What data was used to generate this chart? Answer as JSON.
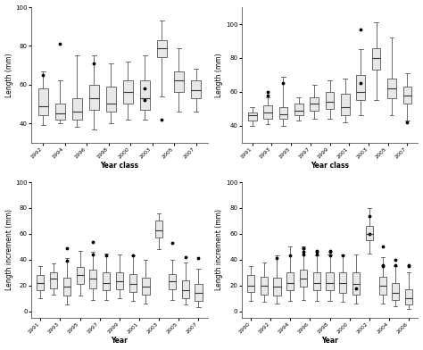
{
  "top_left": {
    "xlabel": "Year class",
    "ylabel": "Length (mm)",
    "ylim": [
      30,
      100
    ],
    "yticks": [
      40,
      60,
      80,
      100
    ],
    "categories": [
      "1992",
      "1994",
      "1996",
      "1998",
      "2000",
      "2003",
      "2005",
      "2007"
    ],
    "boxes": [
      {
        "med": 49,
        "q1": 44,
        "q3": 58,
        "whislo": 39,
        "whishi": 67,
        "fliers": [
          65
        ]
      },
      {
        "med": 45,
        "q1": 42,
        "q3": 50,
        "whislo": 40,
        "whishi": 62,
        "fliers": [
          81
        ]
      },
      {
        "med": 46,
        "q1": 42,
        "q3": 53,
        "whislo": 38,
        "whishi": 75,
        "fliers": []
      },
      {
        "med": 53,
        "q1": 47,
        "q3": 60,
        "whislo": 37,
        "whishi": 75,
        "fliers": [
          71
        ]
      },
      {
        "med": 50,
        "q1": 46,
        "q3": 59,
        "whislo": 40,
        "whishi": 71,
        "fliers": []
      },
      {
        "med": 56,
        "q1": 50,
        "q3": 62,
        "whislo": 42,
        "whishi": 72,
        "fliers": []
      },
      {
        "med": 53,
        "q1": 47,
        "q3": 62,
        "whislo": 42,
        "whishi": 75,
        "fliers": [
          58,
          52
        ]
      },
      {
        "med": 79,
        "q1": 74,
        "q3": 83,
        "whislo": 54,
        "whishi": 93,
        "fliers": [
          42
        ]
      },
      {
        "med": 62,
        "q1": 56,
        "q3": 67,
        "whislo": 46,
        "whishi": 79,
        "fliers": []
      },
      {
        "med": 57,
        "q1": 53,
        "q3": 62,
        "whislo": 46,
        "whishi": 68,
        "fliers": []
      }
    ]
  },
  "top_right": {
    "xlabel": "Year class",
    "ylabel": "Length (mm)",
    "ylim": [
      30,
      110
    ],
    "yticks": [
      40,
      60,
      80,
      100
    ],
    "categories": [
      "1991",
      "1993",
      "1995",
      "1997",
      "1999",
      "2001",
      "2003",
      "2005",
      "2007"
    ],
    "boxes": [
      {
        "med": 46,
        "q1": 43,
        "q3": 48,
        "whislo": 40,
        "whishi": 51,
        "fliers": []
      },
      {
        "med": 48,
        "q1": 44,
        "q3": 52,
        "whislo": 41,
        "whishi": 57,
        "fliers": [
          60,
          58
        ]
      },
      {
        "med": 47,
        "q1": 44,
        "q3": 51,
        "whislo": 40,
        "whishi": 69,
        "fliers": [
          65
        ]
      },
      {
        "med": 49,
        "q1": 46,
        "q3": 53,
        "whislo": 43,
        "whishi": 57,
        "fliers": []
      },
      {
        "med": 53,
        "q1": 49,
        "q3": 57,
        "whislo": 44,
        "whishi": 64,
        "fliers": []
      },
      {
        "med": 54,
        "q1": 50,
        "q3": 60,
        "whislo": 44,
        "whishi": 67,
        "fliers": []
      },
      {
        "med": 51,
        "q1": 46,
        "q3": 59,
        "whislo": 42,
        "whishi": 68,
        "fliers": []
      },
      {
        "med": 60,
        "q1": 55,
        "q3": 70,
        "whislo": 46,
        "whishi": 85,
        "fliers": [
          97,
          65
        ]
      },
      {
        "med": 80,
        "q1": 73,
        "q3": 86,
        "whislo": 55,
        "whishi": 101,
        "fliers": []
      },
      {
        "med": 62,
        "q1": 56,
        "q3": 68,
        "whislo": 46,
        "whishi": 92,
        "fliers": []
      },
      {
        "med": 58,
        "q1": 53,
        "q3": 63,
        "whislo": 43,
        "whishi": 71,
        "fliers": [
          42
        ]
      }
    ]
  },
  "bottom_left": {
    "xlabel": "Year",
    "ylabel": "Length increment (mm)",
    "ylim": [
      -5,
      100
    ],
    "yticks": [
      0,
      20,
      40,
      60,
      80,
      100
    ],
    "categories": [
      "1991",
      "1993",
      "1995",
      "1997",
      "1999",
      "2001",
      "2003",
      "2005",
      "2007"
    ],
    "boxes": [
      {
        "med": 22,
        "q1": 16,
        "q3": 28,
        "whislo": 10,
        "whishi": 35,
        "fliers": []
      },
      {
        "med": 25,
        "q1": 18,
        "q3": 30,
        "whislo": 13,
        "whishi": 37,
        "fliers": []
      },
      {
        "med": 19,
        "q1": 12,
        "q3": 26,
        "whislo": 5,
        "whishi": 41,
        "fliers": [
          39,
          49
        ]
      },
      {
        "med": 28,
        "q1": 21,
        "q3": 34,
        "whislo": 12,
        "whishi": 47,
        "fliers": []
      },
      {
        "med": 25,
        "q1": 18,
        "q3": 32,
        "whislo": 9,
        "whishi": 46,
        "fliers": [
          44,
          54
        ]
      },
      {
        "med": 22,
        "q1": 16,
        "q3": 30,
        "whislo": 9,
        "whishi": 45,
        "fliers": [
          43
        ]
      },
      {
        "med": 23,
        "q1": 17,
        "q3": 30,
        "whislo": 10,
        "whishi": 44,
        "fliers": []
      },
      {
        "med": 21,
        "q1": 15,
        "q3": 29,
        "whislo": 8,
        "whishi": 43,
        "fliers": [
          43
        ]
      },
      {
        "med": 19,
        "q1": 13,
        "q3": 26,
        "whislo": 6,
        "whishi": 40,
        "fliers": []
      },
      {
        "med": 63,
        "q1": 57,
        "q3": 70,
        "whislo": 48,
        "whishi": 76,
        "fliers": []
      },
      {
        "med": 23,
        "q1": 17,
        "q3": 29,
        "whislo": 9,
        "whishi": 40,
        "fliers": [
          53
        ]
      },
      {
        "med": 16,
        "q1": 10,
        "q3": 24,
        "whislo": 5,
        "whishi": 38,
        "fliers": [
          42
        ]
      },
      {
        "med": 14,
        "q1": 8,
        "q3": 21,
        "whislo": 3,
        "whishi": 33,
        "fliers": [
          41
        ]
      }
    ]
  },
  "bottom_right": {
    "xlabel": "Year",
    "ylabel": "Length increment (mm)",
    "ylim": [
      -5,
      100
    ],
    "yticks": [
      0,
      20,
      40,
      60,
      80,
      100
    ],
    "categories": [
      "1990",
      "1992",
      "1994",
      "1996",
      "1998",
      "2000",
      "2002",
      "2004",
      "2006"
    ],
    "boxes": [
      {
        "med": 20,
        "q1": 15,
        "q3": 28,
        "whislo": 8,
        "whishi": 35,
        "fliers": []
      },
      {
        "med": 20,
        "q1": 13,
        "q3": 27,
        "whislo": 7,
        "whishi": 38,
        "fliers": []
      },
      {
        "med": 19,
        "q1": 12,
        "q3": 26,
        "whislo": 6,
        "whishi": 43,
        "fliers": [
          41
        ]
      },
      {
        "med": 22,
        "q1": 16,
        "q3": 30,
        "whislo": 8,
        "whishi": 50,
        "fliers": [
          43
        ]
      },
      {
        "med": 25,
        "q1": 19,
        "q3": 32,
        "whislo": 9,
        "whishi": 50,
        "fliers": [
          49,
          49,
          46,
          44
        ]
      },
      {
        "med": 22,
        "q1": 16,
        "q3": 30,
        "whislo": 8,
        "whishi": 43,
        "fliers": [
          47,
          46,
          44
        ]
      },
      {
        "med": 22,
        "q1": 16,
        "q3": 30,
        "whislo": 8,
        "whishi": 44,
        "fliers": [
          47,
          46,
          43
        ]
      },
      {
        "med": 22,
        "q1": 14,
        "q3": 30,
        "whislo": 7,
        "whishi": 44,
        "fliers": [
          43
        ]
      },
      {
        "med": 21,
        "q1": 13,
        "q3": 30,
        "whislo": 6,
        "whishi": 44,
        "fliers": [
          18
        ]
      },
      {
        "med": 60,
        "q1": 55,
        "q3": 66,
        "whislo": 45,
        "whishi": 80,
        "fliers": [
          74,
          60
        ]
      },
      {
        "med": 20,
        "q1": 13,
        "q3": 27,
        "whislo": 6,
        "whishi": 42,
        "fliers": [
          50,
          36,
          35
        ]
      },
      {
        "med": 14,
        "q1": 9,
        "q3": 22,
        "whislo": 4,
        "whishi": 35,
        "fliers": [
          40,
          36
        ]
      },
      {
        "med": 10,
        "q1": 5,
        "q3": 17,
        "whislo": 2,
        "whishi": 30,
        "fliers": [
          36,
          35
        ]
      }
    ]
  },
  "box_facecolor": "#e8e8e8",
  "box_edgecolor": "#555555",
  "median_color": "#333333",
  "whisker_color": "#555555",
  "cap_color": "#555555",
  "flier_color": "#000000",
  "bg_color": "#ffffff",
  "fig_bg_color": "#ffffff"
}
